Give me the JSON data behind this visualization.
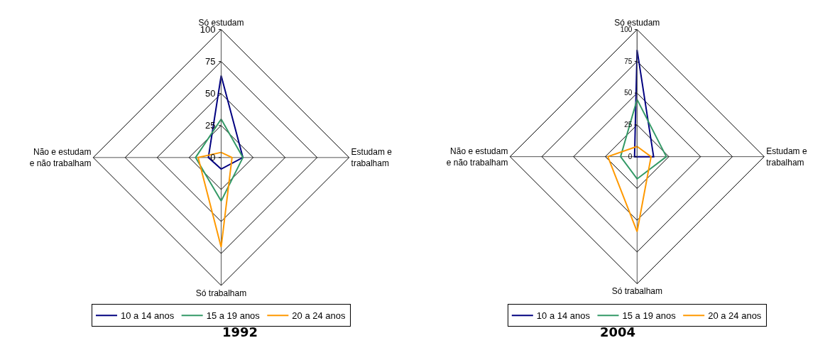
{
  "chart_data": [
    {
      "type": "radar",
      "title": "1992",
      "categories": [
        "Só estudam",
        "Estudam e\ntrabalham",
        "Só trabalham",
        "Não e estudam\ne não trabalham"
      ],
      "ylim": [
        0,
        100
      ],
      "yticks": [
        0,
        25,
        50,
        75,
        100
      ],
      "grid": true,
      "legend": "bottom",
      "marker": "none",
      "line_style": "solid",
      "series": [
        {
          "name": "10 a 14 anos",
          "color": "#000080",
          "values": [
            64,
            17,
            9,
            10
          ]
        },
        {
          "name": "15 a 19 anos",
          "color": "#339966",
          "values": [
            30,
            17,
            34,
            20
          ]
        },
        {
          "name": "20 a 24 anos",
          "color": "#ff9900",
          "values": [
            4,
            8.5,
            70,
            18
          ]
        }
      ]
    },
    {
      "type": "radar",
      "title": "2004",
      "categories": [
        "Só estudam",
        "Estudam e\ntrabalham",
        "Só trabalham",
        "Não e estudam\ne não trabalham"
      ],
      "ylim": [
        0,
        100
      ],
      "yticks": [
        0,
        25,
        50,
        75,
        100
      ],
      "grid": true,
      "legend": "bottom",
      "marker": "none",
      "line_style": "solid",
      "series": [
        {
          "name": "10 a 14 anos",
          "color": "#000080",
          "values": [
            84,
            13,
            0,
            2
          ]
        },
        {
          "name": "15 a 19 anos",
          "color": "#339966",
          "values": [
            45,
            23,
            17.5,
            13
          ]
        },
        {
          "name": "20 a 24 anos",
          "color": "#ff9900",
          "values": [
            8,
            11,
            59,
            23
          ]
        }
      ]
    }
  ]
}
